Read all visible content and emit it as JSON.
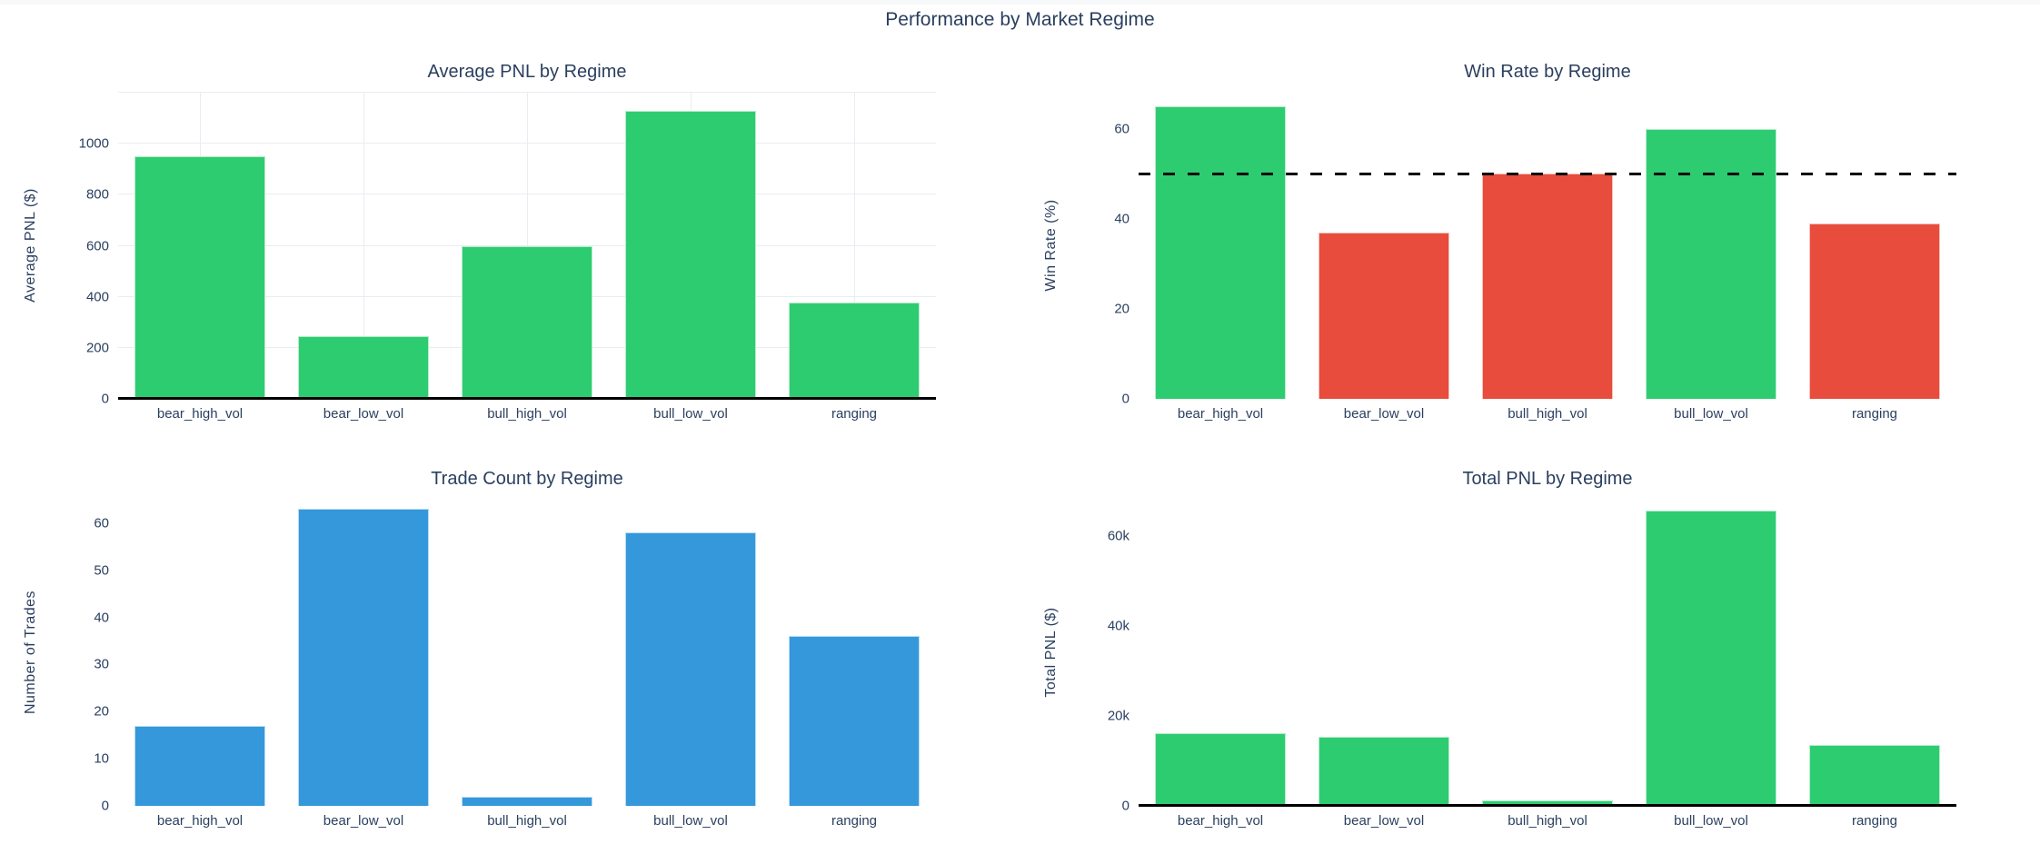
{
  "page": {
    "title": "Performance by Market Regime"
  },
  "colors": {
    "green": "#2ecc71",
    "red": "#e74c3c",
    "blue": "#3498db",
    "text": "#2a3f5f",
    "gridline": "#e9edf3",
    "reference_line": "#000000",
    "zero_line": "#000000",
    "top_strip": "#f7f8fa",
    "background": "#ffffff"
  },
  "chart_data": [
    {
      "type": "bar",
      "title": "Average PNL by Regime",
      "ylabel": "Average PNL ($)",
      "xlabel": "",
      "categories": [
        "bear_high_vol",
        "bear_low_vol",
        "bull_high_vol",
        "bull_low_vol",
        "ranging"
      ],
      "values": [
        950,
        245,
        600,
        1130,
        378
      ],
      "ylim": [
        0,
        1200
      ],
      "yticks": [
        0,
        200,
        400,
        600,
        800,
        1000
      ],
      "ytick_labels": [
        "0",
        "200",
        "400",
        "600",
        "800",
        "1000"
      ],
      "bar_color": "#2ecc71",
      "grid": true,
      "zeroline": true,
      "legend": "none"
    },
    {
      "type": "bar",
      "title": "Win Rate by Regime",
      "ylabel": "Win Rate (%)",
      "xlabel": "",
      "categories": [
        "bear_high_vol",
        "bear_low_vol",
        "bull_high_vol",
        "bull_low_vol",
        "ranging"
      ],
      "values": [
        65,
        37,
        50,
        60,
        39
      ],
      "ylim": [
        0,
        68
      ],
      "yticks": [
        0,
        20,
        40,
        60
      ],
      "ytick_labels": [
        "0",
        "20",
        "40",
        "60"
      ],
      "bar_colors": [
        "#2ecc71",
        "#e74c3c",
        "#e74c3c",
        "#2ecc71",
        "#e74c3c"
      ],
      "refline": {
        "y": 50,
        "style": "dashed",
        "color": "#000000"
      },
      "grid": false,
      "zeroline": false,
      "legend": "none"
    },
    {
      "type": "bar",
      "title": "Trade Count by Regime",
      "ylabel": "Number of Trades",
      "xlabel": "",
      "categories": [
        "bear_high_vol",
        "bear_low_vol",
        "bull_high_vol",
        "bull_low_vol",
        "ranging"
      ],
      "values": [
        17,
        63,
        2,
        58,
        36
      ],
      "ylim": [
        0,
        65
      ],
      "yticks": [
        0,
        10,
        20,
        30,
        40,
        50,
        60
      ],
      "ytick_labels": [
        "0",
        "10",
        "20",
        "30",
        "40",
        "50",
        "60"
      ],
      "bar_color": "#3498db",
      "grid": false,
      "zeroline": false,
      "legend": "none"
    },
    {
      "type": "bar",
      "title": "Total PNL by Regime",
      "ylabel": "Total PNL ($)",
      "xlabel": "",
      "categories": [
        "bear_high_vol",
        "bear_low_vol",
        "bull_high_vol",
        "bull_low_vol",
        "ranging"
      ],
      "values": [
        16150,
        15435,
        1200,
        65540,
        13608
      ],
      "ylim": [
        0,
        68000
      ],
      "yticks": [
        0,
        20000,
        40000,
        60000
      ],
      "ytick_labels": [
        "0",
        "20k",
        "40k",
        "60k"
      ],
      "bar_color": "#2ecc71",
      "grid": false,
      "zeroline": true,
      "legend": "none"
    }
  ]
}
